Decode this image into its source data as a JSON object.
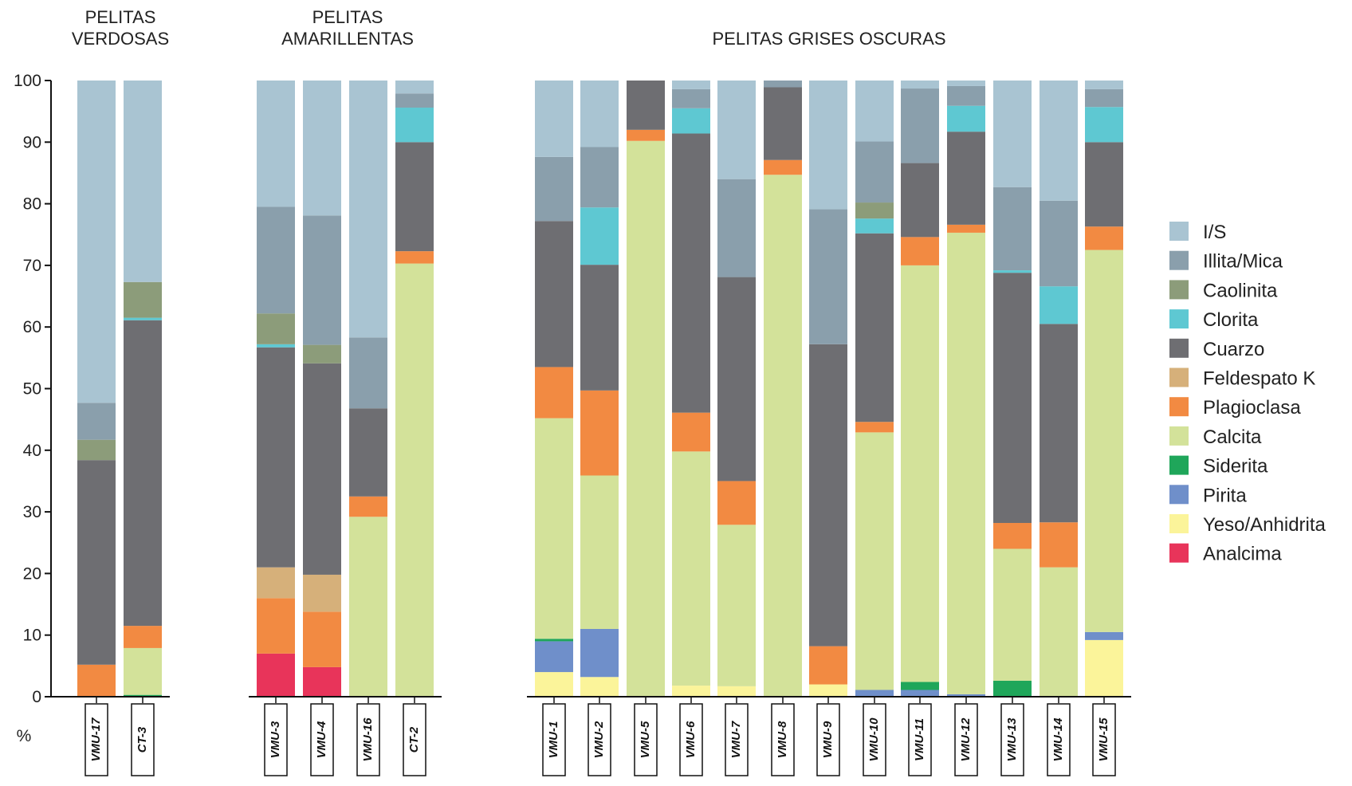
{
  "chart_data": {
    "type": "stacked-bar",
    "ylabel": "%",
    "ylim": [
      0,
      100
    ],
    "yticks": [
      0,
      10,
      20,
      30,
      40,
      50,
      60,
      70,
      80,
      90,
      100
    ],
    "grid": false,
    "legend_position": "right",
    "minerals": [
      {
        "name": "Analcima",
        "color": "#e8345a"
      },
      {
        "name": "Yeso/Anhidrita",
        "color": "#fbf49a"
      },
      {
        "name": "Pirita",
        "color": "#6f8fca"
      },
      {
        "name": "Siderita",
        "color": "#1fa65a"
      },
      {
        "name": "Calcita",
        "color": "#d3e29a"
      },
      {
        "name": "Plagioclasa",
        "color": "#f28a42"
      },
      {
        "name": "Feldespato K",
        "color": "#d6b07a"
      },
      {
        "name": "Cuarzo",
        "color": "#6e6e72"
      },
      {
        "name": "Clorita",
        "color": "#5ec8d2"
      },
      {
        "name": "Caolinita",
        "color": "#8c9c7a"
      },
      {
        "name": "Illita/Mica",
        "color": "#8a9fac"
      },
      {
        "name": "I/S",
        "color": "#a9c4d2"
      }
    ],
    "groups": [
      {
        "title": [
          "PELITAS",
          "VERDOSAS"
        ],
        "samples": [
          {
            "name": "VMU-17",
            "values": [
              0,
              0,
              0,
              0,
              0,
              5.2,
              0,
              33.2,
              0,
              3.3,
              6,
              52.3
            ]
          },
          {
            "name": "CT-3",
            "values": [
              0,
              0,
              0,
              0.3,
              7.6,
              3.6,
              0,
              49.6,
              0.4,
              5.8,
              0,
              32.7
            ]
          }
        ]
      },
      {
        "title": [
          "PELITAS",
          "AMARILLENTAS"
        ],
        "samples": [
          {
            "name": "VMU-3",
            "values": [
              7,
              0,
              0,
              0,
              0,
              9,
              5,
              35.7,
              0.5,
              5,
              17.3,
              20.5
            ]
          },
          {
            "name": "VMU-4",
            "values": [
              4.8,
              0,
              0,
              0,
              0,
              9,
              6,
              34.3,
              0,
              3,
              21,
              21.9
            ]
          },
          {
            "name": "VMU-16",
            "values": [
              0,
              0,
              0,
              0,
              29.2,
              3.3,
              0,
              14.3,
              0,
              0,
              11.5,
              41.7
            ]
          },
          {
            "name": "CT-2",
            "values": [
              0,
              0,
              0,
              0,
              70.3,
              2,
              0,
              17.7,
              5.6,
              0,
              2.3,
              2.1
            ]
          }
        ]
      },
      {
        "title": [
          "PELITAS GRISES OSCURAS"
        ],
        "samples": [
          {
            "name": "VMU-1",
            "values": [
              0,
              4,
              5,
              0.4,
              35.8,
              8.3,
              0,
              23.7,
              0,
              0,
              10.4,
              12.4
            ]
          },
          {
            "name": "VMU-2",
            "values": [
              0,
              3.2,
              7.8,
              0,
              24.9,
              13.8,
              0,
              20.4,
              9.3,
              0,
              9.8,
              10.8
            ]
          },
          {
            "name": "VMU-5",
            "values": [
              0,
              0,
              0,
              0,
              90.2,
              1.8,
              0,
              8,
              0,
              0,
              0,
              0
            ]
          },
          {
            "name": "VMU-6",
            "values": [
              0,
              1.8,
              0,
              0,
              38,
              6.3,
              0,
              45.3,
              4.1,
              0,
              3.1,
              1.4
            ]
          },
          {
            "name": "VMU-7",
            "values": [
              0,
              1.7,
              0,
              0,
              26.2,
              7.1,
              0,
              33.1,
              0,
              0,
              15.9,
              16
            ]
          },
          {
            "name": "VMU-8",
            "values": [
              0,
              0,
              0,
              0,
              84.7,
              2.4,
              0,
              11.8,
              0,
              0,
              1.1,
              0
            ]
          },
          {
            "name": "VMU-9",
            "values": [
              0,
              2,
              0,
              0,
              0,
              6.2,
              0,
              49,
              0,
              0,
              21.9,
              20.9
            ]
          },
          {
            "name": "VMU-10",
            "values": [
              0,
              0,
              1.1,
              0,
              41.8,
              1.7,
              0,
              30.6,
              2.4,
              2.6,
              9.9,
              9.9
            ]
          },
          {
            "name": "VMU-11",
            "values": [
              0,
              0,
              1.1,
              1.3,
              67.6,
              4.6,
              0,
              12,
              0,
              0,
              12.1,
              1.3
            ]
          },
          {
            "name": "VMU-12",
            "values": [
              0,
              0,
              0.4,
              0,
              74.9,
              1.3,
              0,
              15.1,
              4.2,
              0,
              3.2,
              0.9
            ]
          },
          {
            "name": "VMU-13",
            "values": [
              0,
              0,
              0,
              2.6,
              21.4,
              4.2,
              0,
              40.6,
              0.4,
              0,
              13.5,
              17.3
            ]
          },
          {
            "name": "VMU-14",
            "values": [
              0,
              0,
              0,
              0,
              21,
              7.3,
              0,
              32.2,
              6.1,
              0,
              13.9,
              19.5
            ]
          },
          {
            "name": "VMU-15",
            "values": [
              0,
              9.2,
              1.3,
              0,
              62,
              3.8,
              0,
              13.7,
              5.7,
              0,
              2.9,
              1.4
            ]
          }
        ]
      }
    ]
  }
}
